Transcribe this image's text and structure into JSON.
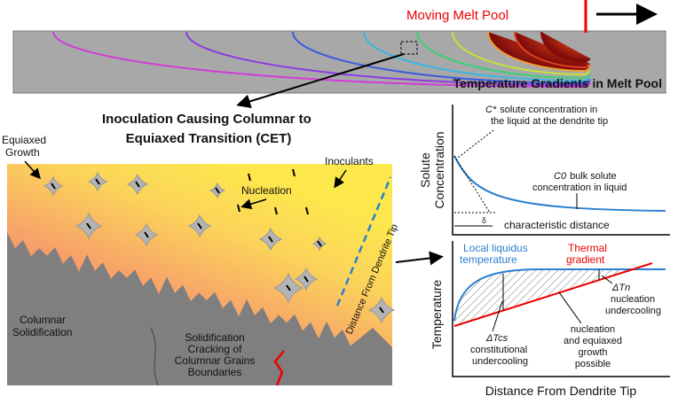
{
  "melt_pool": {
    "label": "Moving Melt Pool",
    "caption": "Temperature Gradients in Melt Pool"
  },
  "title": [
    "Inoculation Causing Columnar to",
    "Equiaxed Transition (CET)"
  ],
  "micro": {
    "equiaxed": [
      "Equiaxed",
      "Growth"
    ],
    "inoculants": "Inoculants",
    "nucleation": "Nucleation",
    "distance": "Distance From Dendrite Tip",
    "columnar": [
      "Columnar",
      "Solidification"
    ],
    "cracking": [
      "Solidification",
      "Cracking of",
      "Columnar Grains",
      "Boundaries"
    ]
  },
  "solute_plot": {
    "ylabel": [
      "Solute",
      "Concentration"
    ],
    "c_star_symbol": "C*",
    "c_star_note": [
      "solute concentration in",
      "the liquid at the dendrite tip"
    ],
    "c0_symbol": "C0",
    "c0_note": [
      "bulk solute",
      "concentration in liquid"
    ],
    "delta": "δ",
    "char_distance": "characteristic distance"
  },
  "temp_plot": {
    "ylabel": "Temperature",
    "xlabel": "Distance From Dendrite Tip",
    "liquidus": [
      "Local liquidus",
      "temperature"
    ],
    "thermal": [
      "Thermal",
      "gradient"
    ],
    "dtn_symbol": "ΔTn",
    "dtn_note": [
      "nucleation",
      "undercooling"
    ],
    "dtcs_symbol": "ΔTcs",
    "dtcs_note": [
      "constitutional",
      "undercooling"
    ],
    "possible": [
      "nucleation",
      "and equiaxed",
      "growth",
      "possible"
    ]
  }
}
